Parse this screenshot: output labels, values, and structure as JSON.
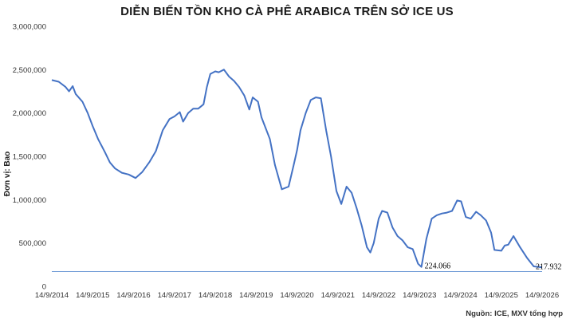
{
  "chart_data": {
    "type": "line",
    "title": "DIỄN BIẾN TỒN KHO CÀ PHÊ ARABICA TRÊN SỞ ICE US",
    "ylabel": "Đơn vị: Bao",
    "xlabel": "",
    "ylim": [
      0,
      3000000
    ],
    "y_ticks": [
      "3,000,000",
      "2,500,000",
      "2,000,000",
      "1,500,000",
      "1,000,000",
      "500,000",
      "0"
    ],
    "x_ticks": [
      "14/9/2014",
      "14/9/2015",
      "14/9/2016",
      "14/9/2017",
      "14/9/2018",
      "14/9/2019",
      "14/9/2020",
      "14/9/2021",
      "14/9/2022",
      "14/9/2023",
      "14/9/2024",
      "14/9/2025",
      "14/9/2026"
    ],
    "xlim": [
      "2014-09-14",
      "2026-09-14"
    ],
    "grid": false,
    "color": "#4472C4",
    "series": [
      {
        "x": [
          "2014-09-14",
          "2014-11-15",
          "2015-01-15",
          "2015-02-15",
          "2015-03-20",
          "2015-04-15",
          "2015-06-15",
          "2015-08-01",
          "2015-09-14",
          "2015-11-01",
          "2016-01-01",
          "2016-02-15",
          "2016-04-01",
          "2016-06-01",
          "2016-08-01",
          "2016-10-01",
          "2016-12-01",
          "2017-02-01",
          "2017-04-01",
          "2017-06-01",
          "2017-08-01",
          "2017-09-14",
          "2017-11-01",
          "2017-12-01",
          "2018-01-15",
          "2018-03-01",
          "2018-04-15",
          "2018-06-01",
          "2018-07-01",
          "2018-08-01",
          "2018-09-14",
          "2018-10-15",
          "2018-12-01",
          "2019-01-15",
          "2019-03-01",
          "2019-04-15",
          "2019-06-01",
          "2019-07-15",
          "2019-08-15",
          "2019-10-01",
          "2019-11-01",
          "2019-12-01",
          "2020-01-15",
          "2020-03-01",
          "2020-05-01",
          "2020-07-01",
          "2020-08-15",
          "2020-09-14",
          "2020-10-15",
          "2020-12-01",
          "2021-01-15",
          "2021-03-01",
          "2021-04-15",
          "2021-06-01",
          "2021-07-15",
          "2021-09-01",
          "2021-10-15",
          "2021-12-01",
          "2022-01-15",
          "2022-03-01",
          "2022-04-15",
          "2022-06-01",
          "2022-07-01",
          "2022-08-01",
          "2022-09-14",
          "2022-10-15",
          "2022-12-01",
          "2023-01-15",
          "2023-03-01",
          "2023-04-15",
          "2023-06-01",
          "2023-07-15",
          "2023-09-01",
          "2023-10-01",
          "2023-11-15",
          "2024-01-01",
          "2024-02-15",
          "2024-04-01",
          "2024-05-15",
          "2024-07-01",
          "2024-08-15",
          "2024-09-20",
          "2024-11-01",
          "2024-12-15",
          "2025-02-01",
          "2025-03-15",
          "2025-05-01",
          "2025-06-15",
          "2025-07-15",
          "2025-09-14",
          "2025-10-15",
          "2025-11-15",
          "2026-01-01",
          "2026-03-01",
          "2026-05-01",
          "2026-07-01",
          "2026-09-14"
        ],
        "values": [
          2380000,
          2360000,
          2300000,
          2250000,
          2310000,
          2220000,
          2130000,
          2000000,
          1850000,
          1700000,
          1550000,
          1430000,
          1360000,
          1310000,
          1290000,
          1250000,
          1320000,
          1430000,
          1560000,
          1800000,
          1930000,
          1960000,
          2010000,
          1900000,
          2000000,
          2050000,
          2050000,
          2100000,
          2300000,
          2450000,
          2480000,
          2470000,
          2500000,
          2420000,
          2370000,
          2300000,
          2200000,
          2040000,
          2180000,
          2130000,
          1950000,
          1850000,
          1700000,
          1400000,
          1120000,
          1150000,
          1400000,
          1570000,
          1800000,
          2000000,
          2150000,
          2180000,
          2170000,
          1800000,
          1500000,
          1100000,
          950000,
          1150000,
          1080000,
          900000,
          700000,
          450000,
          390000,
          500000,
          780000,
          870000,
          850000,
          680000,
          580000,
          530000,
          450000,
          430000,
          260000,
          224066,
          550000,
          780000,
          820000,
          840000,
          850000,
          870000,
          990000,
          980000,
          800000,
          780000,
          860000,
          820000,
          760000,
          620000,
          420000,
          410000,
          470000,
          480000,
          580000,
          450000,
          330000,
          230000,
          217932
        ]
      }
    ],
    "annotations": [
      {
        "label": "224.066",
        "x": "2023-10-01",
        "y": 224066
      },
      {
        "label": "217.932",
        "x": "2026-09-14",
        "y": 217932
      }
    ],
    "reference_line": {
      "y": 170000
    },
    "source_note": "Nguồn: ICE, MXV tổng hợp"
  }
}
